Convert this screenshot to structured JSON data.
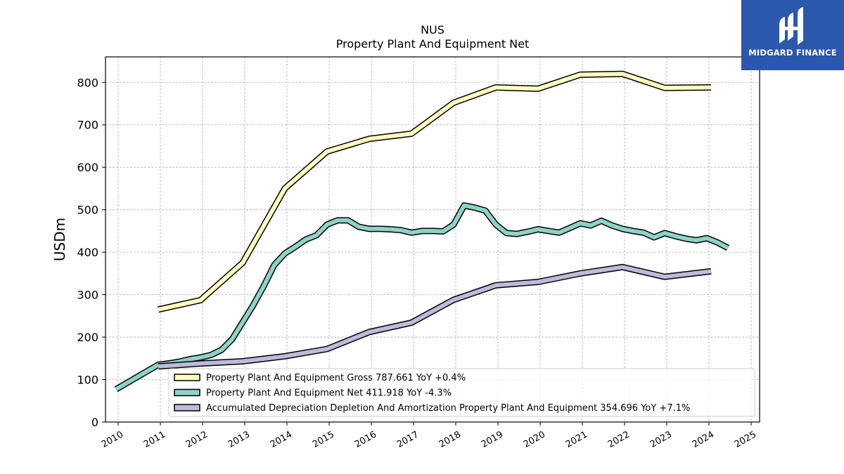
{
  "logo": {
    "text": "MIDGARD FINANCE"
  },
  "chart_data": {
    "type": "line",
    "title": "NUS",
    "subtitle": "Property Plant And Equipment Net",
    "ylabel": "USDm",
    "xlabel": "",
    "ylim": [
      0,
      860
    ],
    "xlim": [
      2009.7,
      2025.2
    ],
    "yticks": [
      0,
      100,
      200,
      300,
      400,
      500,
      600,
      700,
      800
    ],
    "xticks": [
      2010,
      2011,
      2012,
      2013,
      2014,
      2015,
      2016,
      2017,
      2018,
      2019,
      2020,
      2021,
      2022,
      2023,
      2024,
      2025
    ],
    "grid": true,
    "legend_position": "lower-right",
    "series": [
      {
        "name": "Property Plant And Equipment Gross",
        "legend": "Property Plant And Equipment Gross  787.661 YoY +0.4%",
        "color": "#ffffbf",
        "x": [
          2010.95,
          2011.95,
          2012.95,
          2013.95,
          2014.95,
          2015.95,
          2016.95,
          2017.95,
          2018.95,
          2019.95,
          2020.95,
          2021.95,
          2022.95,
          2024.05
        ],
        "y": [
          265,
          287,
          375,
          550,
          637,
          667,
          679,
          752,
          788,
          785,
          818,
          820,
          787,
          788
        ]
      },
      {
        "name": "Property Plant And Equipment Net",
        "legend": "Property Plant And Equipment Net  411.918 YoY -4.3%",
        "color": "#8dd3c7",
        "x": [
          2009.95,
          2010.95,
          2011.2,
          2011.45,
          2011.7,
          2011.95,
          2012.2,
          2012.45,
          2012.7,
          2012.95,
          2013.2,
          2013.45,
          2013.7,
          2013.95,
          2014.2,
          2014.45,
          2014.7,
          2014.95,
          2015.2,
          2015.45,
          2015.7,
          2015.95,
          2016.2,
          2016.45,
          2016.7,
          2016.95,
          2017.2,
          2017.45,
          2017.7,
          2017.95,
          2018.2,
          2018.45,
          2018.7,
          2018.95,
          2019.2,
          2019.45,
          2019.7,
          2019.95,
          2020.2,
          2020.45,
          2020.7,
          2020.95,
          2021.2,
          2021.45,
          2021.7,
          2021.95,
          2022.2,
          2022.45,
          2022.7,
          2022.95,
          2023.2,
          2023.45,
          2023.7,
          2023.95,
          2024.2,
          2024.45
        ],
        "y": [
          77,
          135,
          138,
          142,
          148,
          152,
          158,
          170,
          195,
          235,
          275,
          320,
          370,
          397,
          413,
          430,
          440,
          465,
          475,
          475,
          460,
          455,
          455,
          454,
          452,
          446,
          450,
          450,
          449,
          465,
          510,
          505,
          498,
          465,
          445,
          443,
          448,
          454,
          450,
          446,
          457,
          468,
          463,
          474,
          463,
          455,
          450,
          446,
          435,
          445,
          438,
          432,
          428,
          433,
          423,
          410
        ]
      },
      {
        "name": "Accumulated Depreciation Depletion And Amortization Property Plant And Equipment",
        "legend": "Accumulated Depreciation Depletion And Amortization Property Plant And Equipment  354.696 YoY +7.1%",
        "color": "#bebada",
        "x": [
          2010.95,
          2011.95,
          2012.95,
          2013.95,
          2014.95,
          2015.95,
          2016.95,
          2017.95,
          2018.95,
          2019.95,
          2020.95,
          2021.95,
          2022.95,
          2024.05
        ],
        "y": [
          131,
          138,
          143,
          155,
          172,
          212,
          234,
          288,
          322,
          330,
          350,
          365,
          342,
          355
        ]
      }
    ]
  }
}
